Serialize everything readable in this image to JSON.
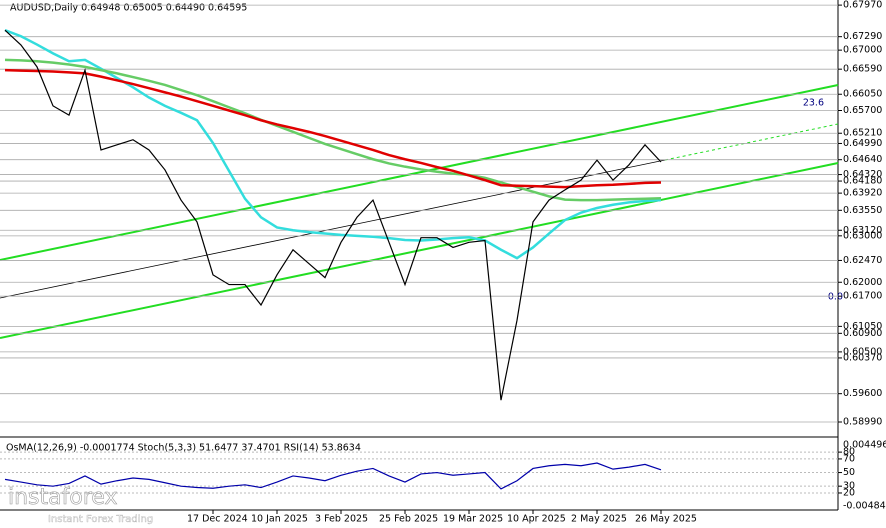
{
  "chart_data": [
    {
      "type": "line",
      "title": "AUDUSD,Daily  0.64948 0.65005 0.64490 0.64595",
      "annotations": [
        "23.6",
        "0.0"
      ],
      "categories": [
        null,
        null,
        null,
        null,
        null,
        null,
        null,
        null,
        null,
        null,
        null,
        null,
        null,
        "17 Dec 2024",
        null,
        null,
        null,
        "10 Jan 2025",
        null,
        null,
        null,
        "3 Feb 2025",
        null,
        null,
        null,
        "25 Feb 2025",
        null,
        null,
        null,
        "19 Mar 2025",
        null,
        null,
        null,
        "10 Apr 2025",
        null,
        null,
        null,
        "2 May 2025",
        null,
        null,
        null,
        "26 May 2025"
      ],
      "series": [
        {
          "name": "AUDUSD",
          "color": "#000000",
          "values": [
            0.6743,
            0.6711,
            0.6664,
            0.658,
            0.656,
            0.6657,
            0.6485,
            0.6496,
            0.6507,
            0.6485,
            0.6442,
            0.6377,
            0.633,
            0.6216,
            0.6195,
            0.6195,
            0.6151,
            0.6216,
            0.627,
            0.624,
            0.621,
            0.6286,
            0.634,
            0.6377,
            0.6286,
            0.6195,
            0.6296,
            0.6296,
            0.6275,
            0.6286,
            0.629,
            0.5946,
            0.6118,
            0.633,
            0.6377,
            0.6399,
            0.642,
            0.6463,
            0.642,
            0.6453,
            0.6496,
            0.6459
          ]
        },
        {
          "name": "MA200",
          "color": "#e00000",
          "values": [
            0.6657,
            0.6656,
            0.6655,
            0.6654,
            0.6652,
            0.665,
            0.6643,
            0.6635,
            0.6627,
            0.6618,
            0.6609,
            0.66,
            0.659,
            0.658,
            0.657,
            0.656,
            0.6549,
            0.654,
            0.6532,
            0.6524,
            0.6515,
            0.6505,
            0.6495,
            0.6485,
            0.6474,
            0.6465,
            0.6457,
            0.6448,
            0.644,
            0.643,
            0.642,
            0.6409,
            0.6408,
            0.6407,
            0.6406,
            0.6405,
            0.6407,
            0.6409,
            0.641,
            0.6412,
            0.6414,
            0.6415
          ]
        },
        {
          "name": "MA144",
          "color": "#66cc66",
          "values": [
            0.6679,
            0.6678,
            0.6676,
            0.6673,
            0.6669,
            0.6664,
            0.6657,
            0.665,
            0.6642,
            0.6634,
            0.6625,
            0.6614,
            0.6603,
            0.659,
            0.6577,
            0.6564,
            0.655,
            0.6537,
            0.6524,
            0.6511,
            0.6498,
            0.6487,
            0.6476,
            0.6465,
            0.6456,
            0.6449,
            0.6443,
            0.6438,
            0.6434,
            0.6431,
            0.6425,
            0.6415,
            0.6405,
            0.6395,
            0.6385,
            0.6378,
            0.6377,
            0.6377,
            0.6378,
            0.6379,
            0.638,
            0.6381
          ]
        },
        {
          "name": "MA50",
          "color": "#33dddd",
          "values": [
            0.6743,
            0.673,
            0.6712,
            0.6693,
            0.6676,
            0.6679,
            0.666,
            0.664,
            0.662,
            0.6598,
            0.658,
            0.6565,
            0.6549,
            0.65,
            0.644,
            0.638,
            0.634,
            0.6318,
            0.6312,
            0.6308,
            0.6305,
            0.6302,
            0.63,
            0.6298,
            0.6295,
            0.6291,
            0.629,
            0.6292,
            0.6295,
            0.6297,
            0.629,
            0.627,
            0.6252,
            0.6275,
            0.6305,
            0.6334,
            0.635,
            0.636,
            0.6367,
            0.6372,
            0.6375,
            0.6377
          ]
        }
      ],
      "ylim": [
        0.5871,
        0.6808
      ],
      "yticks": [
        {
          "value": 0.6797,
          "label": "0.67970"
        },
        {
          "value": 0.6729,
          "label": "0.67290"
        },
        {
          "value": 0.67,
          "label": "0.67000"
        },
        {
          "value": 0.6659,
          "label": "0.66590"
        },
        {
          "value": 0.6605,
          "label": "0.66050"
        },
        {
          "value": 0.657,
          "label": "0.65700"
        },
        {
          "value": 0.6521,
          "label": "0.65210"
        },
        {
          "value": 0.6499,
          "label": "0.64990"
        },
        {
          "value": 0.6464,
          "label": "0.64640"
        },
        {
          "value": 0.6432,
          "label": "0.64320"
        },
        {
          "value": 0.6418,
          "label": "0.64180"
        },
        {
          "value": 0.6392,
          "label": "0.63920"
        },
        {
          "value": 0.6355,
          "label": "0.63550"
        },
        {
          "value": 0.6312,
          "label": "0.63120"
        },
        {
          "value": 0.63,
          "label": "0.63000"
        },
        {
          "value": 0.6247,
          "label": "0.62470"
        },
        {
          "value": 0.62,
          "label": "0.62000"
        },
        {
          "value": 0.617,
          "label": "0.61700"
        },
        {
          "value": 0.6105,
          "label": "0.61050"
        },
        {
          "value": 0.609,
          "label": "0.60900"
        },
        {
          "value": 0.605,
          "label": "0.60500"
        },
        {
          "value": 0.6037,
          "label": "0.60370"
        },
        {
          "value": 0.596,
          "label": "0.59600"
        },
        {
          "value": 0.5899,
          "label": "0.58990"
        }
      ],
      "grid": true
    },
    {
      "type": "line",
      "title": "OsMA(12,26,9) -0.0001774  Stoch(5,3,3) 51.6477 37.4701  RSI(14) 53.8634",
      "annotations": [
        "0.004496",
        "-0.004843"
      ],
      "series": [
        {
          "name": "RSI(14)",
          "color": "#0000aa",
          "values": [
            40,
            36,
            32,
            30,
            34,
            45,
            33,
            38,
            42,
            40,
            35,
            30,
            28,
            27,
            30,
            32,
            28,
            36,
            45,
            42,
            38,
            46,
            52,
            56,
            45,
            36,
            48,
            50,
            46,
            48,
            50,
            26,
            38,
            56,
            60,
            62,
            60,
            64,
            55,
            58,
            62,
            54
          ]
        }
      ],
      "ylim": [
        0,
        100
      ],
      "yticks": [
        20,
        30,
        50,
        70,
        80
      ]
    }
  ],
  "logo": {
    "name": "instaforex",
    "tagline": "Instant Forex Trading"
  }
}
